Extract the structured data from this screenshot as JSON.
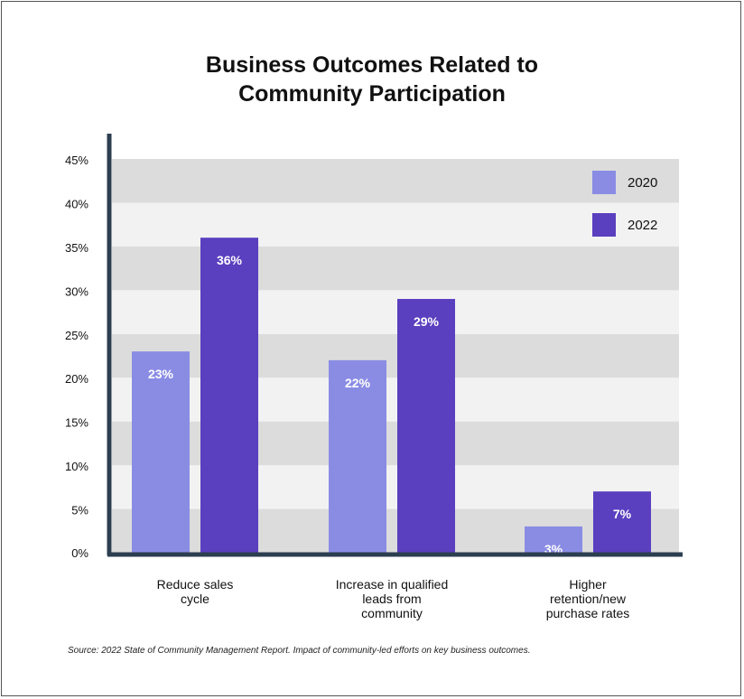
{
  "chart_data": {
    "type": "bar",
    "title_lines": [
      "Business Outcomes Related to",
      "Community Participation"
    ],
    "categories": [
      [
        "Reduce sales",
        "cycle"
      ],
      [
        "Increase in qualified",
        "leads from",
        "community"
      ],
      [
        "Higher",
        "retention/new",
        "purchase rates"
      ]
    ],
    "series": [
      {
        "name": "2020",
        "color": "#8a8ce4",
        "values": [
          23,
          22,
          3
        ],
        "labels": [
          "23%",
          "22%",
          "3%"
        ]
      },
      {
        "name": "2022",
        "color": "#5a3fbf",
        "values": [
          36,
          29,
          7
        ],
        "labels": [
          "36%",
          "29%",
          "7%"
        ]
      }
    ],
    "yticks": [
      0,
      5,
      10,
      15,
      20,
      25,
      30,
      35,
      40,
      45
    ],
    "ytick_labels": [
      "0%",
      "5%",
      "10%",
      "15%",
      "20%",
      "25%",
      "30%",
      "35%",
      "40%",
      "45%"
    ],
    "ylim": [
      0,
      45
    ],
    "legend_position": "top-right",
    "grid_bands": {
      "dark": "#dcdcdc",
      "light": "#f2f2f2"
    },
    "axis_color": "#2c3e50",
    "source": "Source: 2022 State of Community Management Report. Impact of community-led efforts on key business outcomes."
  }
}
